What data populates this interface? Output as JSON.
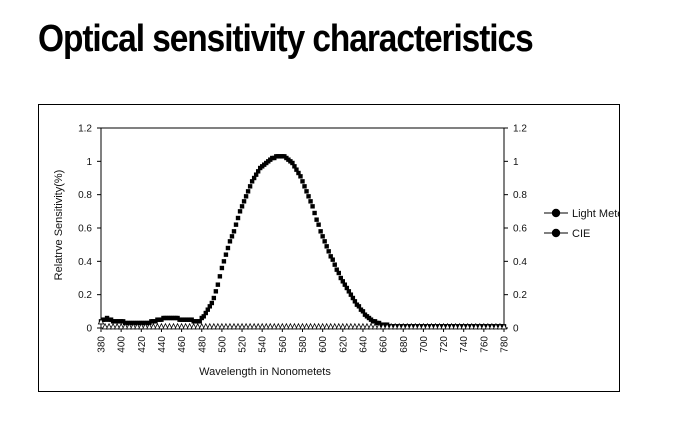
{
  "title": "Optical sensitivity characteristics",
  "chart_data": {
    "type": "scatter",
    "xlabel": "Wavelength in Nonometets",
    "ylabel": "Relatrve Sensitivity(%)",
    "xlim": [
      380,
      780
    ],
    "ylim": [
      0,
      1.2
    ],
    "xticks": [
      380,
      400,
      420,
      440,
      460,
      480,
      500,
      520,
      540,
      560,
      580,
      600,
      620,
      640,
      660,
      680,
      700,
      720,
      740,
      760,
      780
    ],
    "yticks": [
      0,
      0.2,
      0.4,
      0.6,
      0.8,
      1,
      1.2
    ],
    "yticklabels": [
      "0",
      "0.2",
      "0.4",
      "0.6",
      "0.8",
      "1",
      "1.2"
    ],
    "legend_position": "right",
    "series": [
      {
        "name": "Light Meter",
        "marker": "square",
        "color": "#000000",
        "x": [
          380,
          382,
          384,
          386,
          388,
          390,
          392,
          394,
          396,
          398,
          400,
          402,
          404,
          406,
          408,
          410,
          412,
          414,
          416,
          418,
          420,
          422,
          424,
          426,
          428,
          430,
          432,
          434,
          436,
          438,
          440,
          442,
          444,
          446,
          448,
          450,
          452,
          454,
          456,
          458,
          460,
          462,
          464,
          466,
          468,
          470,
          472,
          474,
          476,
          478,
          480,
          482,
          484,
          486,
          488,
          490,
          492,
          494,
          496,
          498,
          500,
          502,
          504,
          506,
          508,
          510,
          512,
          514,
          516,
          518,
          520,
          522,
          524,
          526,
          528,
          530,
          532,
          534,
          536,
          538,
          540,
          542,
          544,
          546,
          548,
          550,
          552,
          554,
          556,
          558,
          560,
          562,
          564,
          566,
          568,
          570,
          572,
          574,
          576,
          578,
          580,
          582,
          584,
          586,
          588,
          590,
          592,
          594,
          596,
          598,
          600,
          602,
          604,
          606,
          608,
          610,
          612,
          614,
          616,
          618,
          620,
          622,
          624,
          626,
          628,
          630,
          632,
          634,
          636,
          638,
          640,
          642,
          644,
          646,
          648,
          650,
          652,
          654,
          656,
          658,
          660,
          662,
          664,
          666,
          668,
          670,
          672,
          674,
          676,
          678,
          680,
          682,
          684,
          686,
          688,
          690,
          692,
          694,
          696,
          698,
          700,
          702,
          704,
          706,
          708,
          710,
          712,
          714,
          716,
          718,
          720,
          722,
          724,
          726,
          728,
          730,
          732,
          734,
          736,
          738,
          740,
          742,
          744,
          746,
          748,
          750,
          752,
          754,
          756,
          758,
          760,
          762,
          764,
          766,
          768,
          770,
          772,
          774,
          776,
          778,
          780
        ],
        "y": [
          0.04,
          0.05,
          0.05,
          0.06,
          0.05,
          0.05,
          0.04,
          0.04,
          0.04,
          0.04,
          0.04,
          0.04,
          0.03,
          0.03,
          0.03,
          0.03,
          0.03,
          0.03,
          0.03,
          0.03,
          0.03,
          0.03,
          0.03,
          0.03,
          0.03,
          0.04,
          0.04,
          0.04,
          0.05,
          0.05,
          0.05,
          0.06,
          0.06,
          0.06,
          0.06,
          0.06,
          0.06,
          0.06,
          0.06,
          0.05,
          0.05,
          0.05,
          0.05,
          0.05,
          0.05,
          0.05,
          0.04,
          0.04,
          0.04,
          0.04,
          0.06,
          0.07,
          0.09,
          0.11,
          0.13,
          0.15,
          0.18,
          0.22,
          0.26,
          0.31,
          0.36,
          0.4,
          0.44,
          0.48,
          0.52,
          0.55,
          0.58,
          0.62,
          0.66,
          0.7,
          0.73,
          0.76,
          0.79,
          0.82,
          0.85,
          0.88,
          0.9,
          0.92,
          0.94,
          0.96,
          0.97,
          0.98,
          0.99,
          1.0,
          1.01,
          1.02,
          1.02,
          1.03,
          1.03,
          1.03,
          1.03,
          1.03,
          1.02,
          1.01,
          1.0,
          0.99,
          0.97,
          0.95,
          0.93,
          0.91,
          0.88,
          0.85,
          0.82,
          0.79,
          0.76,
          0.73,
          0.69,
          0.65,
          0.62,
          0.58,
          0.55,
          0.52,
          0.49,
          0.46,
          0.43,
          0.41,
          0.38,
          0.35,
          0.33,
          0.3,
          0.28,
          0.26,
          0.24,
          0.22,
          0.2,
          0.18,
          0.16,
          0.14,
          0.13,
          0.11,
          0.1,
          0.08,
          0.07,
          0.06,
          0.05,
          0.04,
          0.04,
          0.03,
          0.03,
          0.02,
          0.02,
          0.02,
          0.02,
          0.01,
          0.01,
          0.01,
          0.01,
          0.01,
          0.01,
          0.01,
          0.01,
          0.01,
          0.01,
          0.01,
          0.01,
          0.01,
          0.01,
          0.01,
          0.01,
          0.01,
          0.01,
          0.01,
          0.01,
          0.01,
          0.01,
          0.01,
          0.01,
          0.01,
          0.01,
          0.01,
          0.01,
          0.01,
          0.01,
          0.01,
          0.01,
          0.01,
          0.01,
          0.01,
          0.01,
          0.01,
          0.01,
          0.01,
          0.01,
          0.01,
          0.01,
          0.01,
          0.01,
          0.01,
          0.01,
          0.01,
          0.01,
          0.01,
          0.01,
          0.01,
          0.01,
          0.01,
          0.01,
          0.01,
          0.01,
          0.01,
          0.01
        ]
      },
      {
        "name": "CIE",
        "marker": "triangle",
        "color": "#000000",
        "x": [
          380,
          384,
          388,
          392,
          396,
          400,
          404,
          408,
          412,
          416,
          420,
          424,
          428,
          432,
          436,
          440,
          444,
          448,
          452,
          456,
          460,
          464,
          468,
          472,
          476,
          480,
          484,
          488,
          492,
          496,
          500,
          504,
          508,
          512,
          516,
          520,
          524,
          528,
          532,
          536,
          540,
          544,
          548,
          552,
          556,
          560,
          564,
          568,
          572,
          576,
          580,
          584,
          588,
          592,
          596,
          600,
          604,
          608,
          612,
          616,
          620,
          624,
          628,
          632,
          636,
          640,
          644,
          648,
          652,
          656,
          660,
          664,
          668,
          672,
          676,
          680,
          684,
          688,
          692,
          696,
          700,
          704,
          708,
          712,
          716,
          720,
          724,
          728,
          732,
          736,
          740,
          744,
          748,
          752,
          756,
          760,
          764,
          768,
          772,
          776,
          780
        ],
        "y": [
          0.04,
          0.01,
          0.01,
          0.01,
          0.01,
          0.01,
          0.01,
          0.01,
          0.01,
          0.01,
          0.01,
          0.01,
          0.01,
          0.01,
          0.01,
          0.01,
          0.01,
          0.01,
          0.01,
          0.01,
          0.01,
          0.01,
          0.01,
          0.01,
          0.01,
          0.01,
          0.01,
          0.01,
          0.01,
          0.01,
          0.01,
          0.01,
          0.01,
          0.01,
          0.01,
          0.01,
          0.01,
          0.01,
          0.01,
          0.01,
          0.01,
          0.01,
          0.01,
          0.01,
          0.01,
          0.01,
          0.01,
          0.01,
          0.01,
          0.01,
          0.01,
          0.01,
          0.01,
          0.01,
          0.01,
          0.01,
          0.01,
          0.01,
          0.01,
          0.01,
          0.01,
          0.01,
          0.01,
          0.01,
          0.01,
          0.01,
          0.01,
          0.01,
          0.01,
          0.01,
          0.01,
          0.01,
          0.01,
          0.01,
          0.01,
          0.01,
          0.01,
          0.01,
          0.01,
          0.01,
          0.01,
          0.01,
          0.01,
          0.01,
          0.01,
          0.01,
          0.01,
          0.01,
          0.01,
          0.01,
          0.01,
          0.01,
          0.01,
          0.01,
          0.01,
          0.01,
          0.01,
          0.01,
          0.01,
          0.01,
          0.01
        ]
      }
    ]
  }
}
